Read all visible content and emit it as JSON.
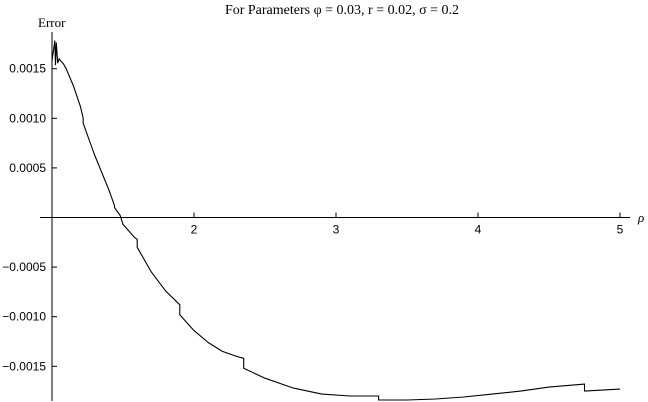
{
  "chart_data": {
    "type": "line",
    "title": "For Parameters φ = 0.03, r = 0.02, σ = 0.2",
    "xlabel": "ρ",
    "ylabel": "Error",
    "xlim": [
      1.0,
      5.0
    ],
    "ylim": [
      -0.00185,
      0.00185
    ],
    "grid": false,
    "x_ticks": [
      2,
      3,
      4,
      5
    ],
    "x_tick_labels": [
      "2",
      "3",
      "4",
      "5"
    ],
    "y_ticks": [
      0.0015,
      0.001,
      0.0005,
      -0.0005,
      -0.001,
      -0.0015
    ],
    "y_tick_labels": [
      "0.0015",
      "0.0010",
      "0.0005",
      "−0.0005",
      "−0.0010",
      "−0.0015"
    ],
    "series": [
      {
        "x": [
          1.0,
          1.02,
          1.025,
          1.03,
          1.04,
          1.05,
          1.06,
          1.08,
          1.1,
          1.15,
          1.2,
          1.22,
          1.22,
          1.3,
          1.4,
          1.44,
          1.44,
          1.48,
          1.5,
          1.55,
          1.58,
          1.6,
          1.6,
          1.7,
          1.8,
          1.9,
          1.9,
          2.0,
          2.1,
          2.2,
          2.3,
          2.35,
          2.35,
          2.5,
          2.7,
          2.9,
          3.1,
          3.3,
          3.3,
          3.5,
          3.7,
          3.9,
          4.1,
          4.3,
          4.5,
          4.75,
          4.75,
          5.0
        ],
        "y": [
          0.00158,
          0.00178,
          0.00154,
          0.00176,
          0.00156,
          0.0016,
          0.00158,
          0.00155,
          0.0015,
          0.00133,
          0.00112,
          0.001,
          0.00095,
          0.00063,
          0.00028,
          0.00012,
          0.0001,
          2e-05,
          -7e-05,
          -0.00015,
          -0.0002,
          -0.00022,
          -0.0003,
          -0.00055,
          -0.00074,
          -0.00088,
          -0.00098,
          -0.00114,
          -0.00126,
          -0.00135,
          -0.0014,
          -0.00142,
          -0.00152,
          -0.00162,
          -0.00172,
          -0.00178,
          -0.0018,
          -0.0018,
          -0.00184,
          -0.00184,
          -0.00183,
          -0.00181,
          -0.00178,
          -0.00175,
          -0.00171,
          -0.00168,
          -0.00175,
          -0.00173
        ]
      }
    ]
  }
}
